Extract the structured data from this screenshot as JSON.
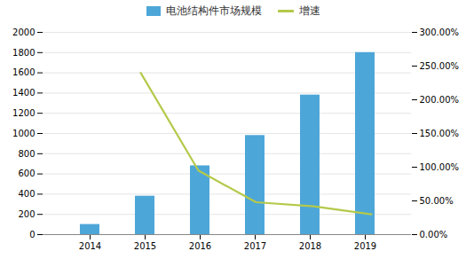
{
  "chart_data": {
    "type": "bar",
    "categories": [
      "2014",
      "2015",
      "2016",
      "2017",
      "2018",
      "2019"
    ],
    "series": [
      {
        "name": "电池结构件市场规模",
        "type": "bar",
        "color": "#4da6d8",
        "values": [
          100,
          380,
          680,
          980,
          1380,
          1800
        ]
      },
      {
        "name": "增速",
        "type": "line",
        "color": "#b5c94a",
        "axis": "y2",
        "values": [
          null,
          240,
          95,
          48,
          42,
          30
        ]
      }
    ],
    "ylim": [
      0,
      2000
    ],
    "yticks": [
      0,
      200,
      400,
      600,
      800,
      1000,
      1200,
      1400,
      1600,
      1800,
      2000
    ],
    "y2lim": [
      0,
      300
    ],
    "y2ticks": [
      {
        "value": 0,
        "label": "0.00%"
      },
      {
        "value": 50,
        "label": "50.00%"
      },
      {
        "value": 100,
        "label": "100.00%"
      },
      {
        "value": 150,
        "label": "150.00%"
      },
      {
        "value": 200,
        "label": "200.00%"
      },
      {
        "value": 250,
        "label": "250.00%"
      },
      {
        "value": 300,
        "label": "300.00%"
      }
    ],
    "grid": true,
    "legend": "top"
  }
}
